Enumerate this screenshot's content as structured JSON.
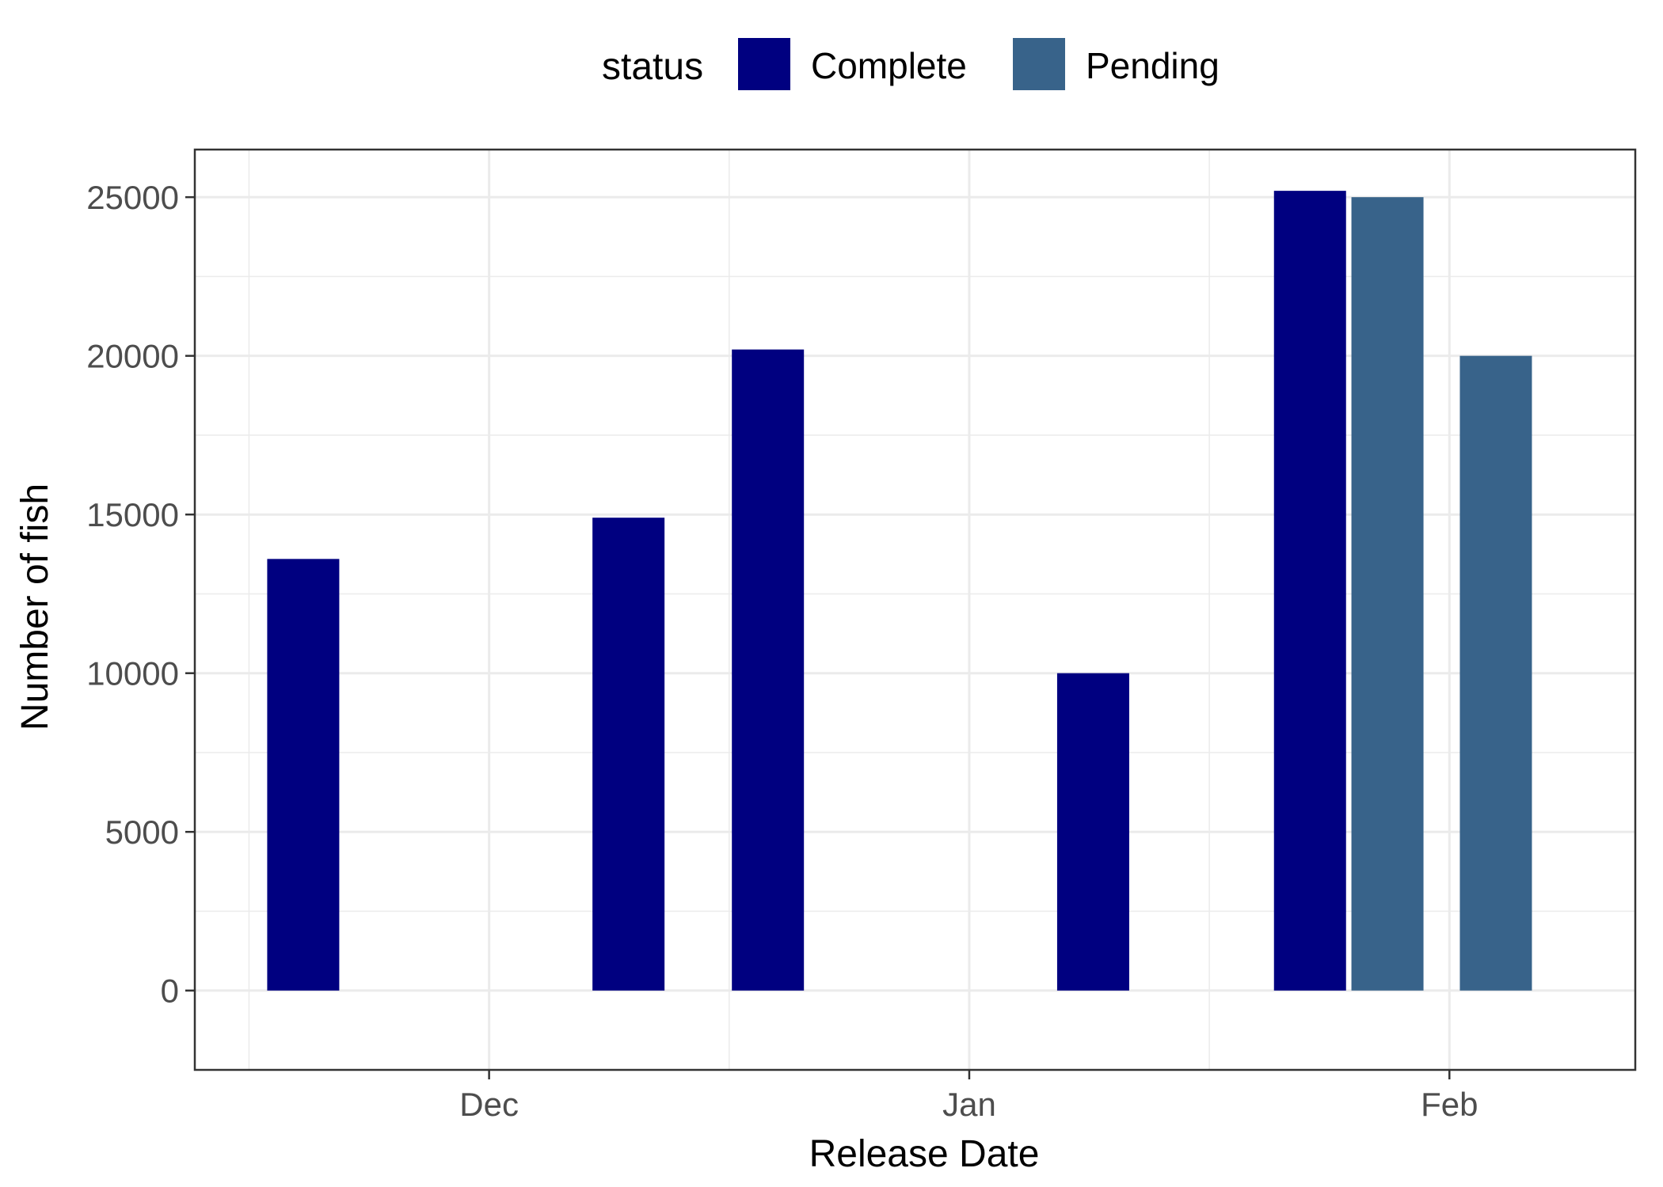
{
  "chart_data": {
    "type": "bar",
    "xlabel": "Release Date",
    "ylabel": "Number of fish",
    "x_axis": {
      "kind": "date",
      "range": [
        "2023-11-12",
        "2024-02-13"
      ],
      "ticks": [
        {
          "label": "Dec",
          "date": "2023-12-01"
        },
        {
          "label": "Jan",
          "date": "2024-01-01"
        },
        {
          "label": "Feb",
          "date": "2024-02-01"
        }
      ]
    },
    "ylim": [
      -2500,
      26500
    ],
    "y_ticks": [
      0,
      5000,
      10000,
      15000,
      20000,
      25000
    ],
    "y_tick_labels": [
      "0",
      "5000",
      "10000",
      "15000",
      "20000",
      "25000"
    ],
    "grid": true,
    "legend": {
      "title": "status",
      "position": "top",
      "entries": [
        {
          "label": "Complete",
          "color": "#000080"
        },
        {
          "label": "Pending",
          "color": "#38638A"
        }
      ]
    },
    "series": [
      {
        "name": "Complete",
        "color": "#000080",
        "points": [
          {
            "date": "2023-11-19",
            "value": 13600
          },
          {
            "date": "2023-12-10",
            "value": 14900
          },
          {
            "date": "2023-12-19",
            "value": 20200
          },
          {
            "date": "2024-01-09",
            "value": 10000
          },
          {
            "date": "2024-01-23",
            "value": 25200
          }
        ]
      },
      {
        "name": "Pending",
        "color": "#38638A",
        "points": [
          {
            "date": "2024-01-28",
            "value": 25000
          },
          {
            "date": "2024-02-04",
            "value": 20000
          }
        ]
      }
    ]
  }
}
